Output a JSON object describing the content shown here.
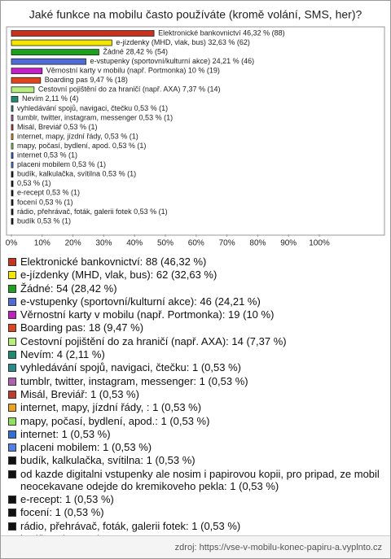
{
  "chart_data": {
    "type": "barh",
    "title": "Jaké funkce na mobilu často používáte (kromě volání, SMS, her)?",
    "value_labels": [
      "Elektronické bankovnictví 46,32 % (88)",
      "e-jízdenky (MHD, vlak, bus) 32,63 % (62)",
      "Žádné 28,42 % (54)",
      "e-vstupenky (sportovní/kulturní akce) 24,21 % (46)",
      "Věrnostní karty v mobilu (např. Portmonka) 10 % (19)",
      "Boarding pas 9,47 % (18)",
      "Cestovní pojištění do za hraničí (např. AXA) 7,37 % (14)",
      "Nevím 2,11 % (4)",
      "vyhledávání spojů, navigaci, čtečku 0,53 % (1)",
      "tumblr, twitter, instagram, messenger 0,53 % (1)",
      "Misál, Breviář 0,53 % (1)",
      "internet, mapy, jízdní řády,  0,53 % (1)",
      "mapy, počasí, bydlení,  apod. 0,53 % (1)",
      "internet 0,53 % (1)",
      "placeni mobilem 0,53 % (1)",
      "budík, kalkulačka, svítilna 0,53 % (1)",
      "0,53 % (1)",
      "e-recept 0,53 % (1)",
      "focení 0,53 % (1)",
      "rádio, přehrávač, foták, galerii fotek 0,53 % (1)",
      "budík 0,53 % (1)"
    ],
    "values": [
      46.32,
      32.63,
      28.42,
      24.21,
      10,
      9.47,
      7.37,
      2.11,
      0.53,
      0.53,
      0.53,
      0.53,
      0.53,
      0.53,
      0.53,
      0.53,
      0.53,
      0.53,
      0.53,
      0.53,
      0.53
    ],
    "legend": [
      "Elektronické bankovnictví: 88 (46,32 %)",
      "e-jízdenky (MHD, vlak, bus): 62 (32,63 %)",
      "Žádné: 54 (28,42 %)",
      "e-vstupenky (sportovní/kulturní akce): 46 (24,21 %)",
      "Věrnostní karty v mobilu (např. Portmonka): 19 (10 %)",
      "Boarding pas: 18 (9,47 %)",
      "Cestovní pojištění do za hraničí (např. AXA): 14 (7,37 %)",
      "Nevím: 4 (2,11 %)",
      "vyhledávání spojů, navigaci, čtečku: 1 (0,53 %)",
      "tumblr, twitter, instagram, messenger: 1 (0,53 %)",
      "Misál, Breviář: 1 (0,53 %)",
      "internet, mapy, jízdní řády, : 1 (0,53 %)",
      "mapy, počasí, bydlení,  apod.: 1 (0,53 %)",
      "internet: 1 (0,53 %)",
      "placeni mobilem: 1 (0,53 %)",
      "budík, kalkulačka, svítilna: 1 (0,53 %)",
      "od kazde digitalni vstupenky ale nosim i papirovou kopii, pro pripad, ze mobil neocekavane odejde do kremikoveho pekla: 1 (0,53 %)",
      "e-recept: 1 (0,53 %)",
      "focení: 1 (0,53 %)",
      "rádio, přehrávač, foták, galerii fotek: 1 (0,53 %)",
      "budík: 1 (0,53 %)"
    ],
    "colors": [
      "#c8321e",
      "#f5e600",
      "#1aa31a",
      "#4f6bd8",
      "#c21fc9",
      "#e0441e",
      "#b7ef7f",
      "#1e8c6e",
      "#2a8a8a",
      "#b060b0",
      "#c0392b",
      "#f0a020",
      "#90e060",
      "#3070d0",
      "#5080e0",
      "#111111",
      "#111111",
      "#111111",
      "#111111",
      "#111111",
      "#111111"
    ],
    "xlim": [
      0,
      100
    ],
    "xticks": [
      {
        "value": 0,
        "label": "0%"
      },
      {
        "value": 10,
        "label": "10%"
      },
      {
        "value": 20,
        "label": "20%"
      },
      {
        "value": 30,
        "label": "30%"
      },
      {
        "value": 40,
        "label": "40%"
      },
      {
        "value": 50,
        "label": "50%"
      },
      {
        "value": 60,
        "label": "60%"
      },
      {
        "value": 70,
        "label": "70%"
      },
      {
        "value": 80,
        "label": "80%"
      },
      {
        "value": 90,
        "label": "90%"
      },
      {
        "value": 100,
        "label": "100%"
      }
    ],
    "source": "zdroj: https://vse-v-mobilu-konec-papiru-a.vyplnto.cz"
  }
}
